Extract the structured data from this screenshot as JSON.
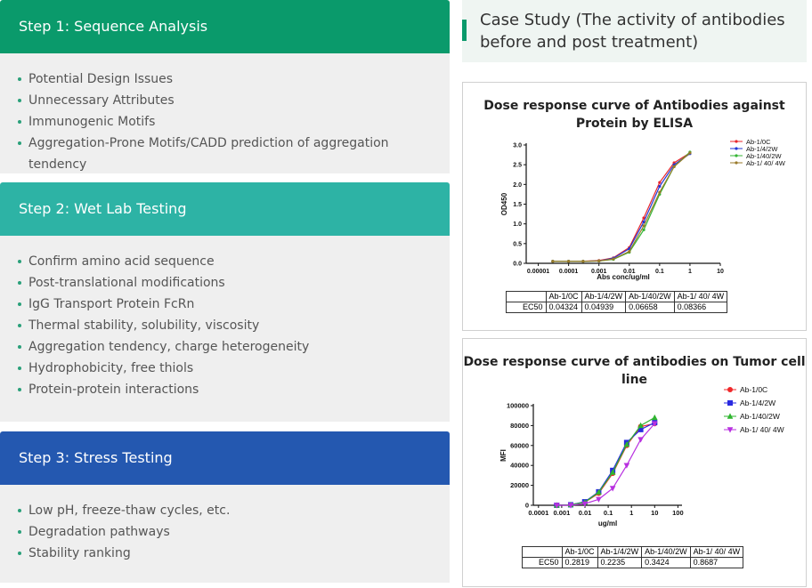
{
  "steps": [
    {
      "title": "Step 1: Sequence Analysis",
      "items": [
        "Potential Design Issues",
        "Unnecessary Attributes",
        "Immunogenic Motifs",
        "Aggregation-Prone Motifs/CADD prediction of aggregation tendency"
      ]
    },
    {
      "title": "Step 2: Wet Lab Testing",
      "items": [
        "Confirm amino acid sequence",
        "Post-translational modifications",
        "IgG Transport Protein FcRn",
        "Thermal stability, solubility, viscosity",
        "Aggregation tendency, charge heterogeneity",
        "Hydrophobicity, free thiols",
        "Protein-protein interactions"
      ]
    },
    {
      "title": "Step 3: Stress Testing",
      "items": [
        "Low pH, freeze-thaw cycles, etc.",
        "Degradation pathways",
        "Stability ranking"
      ]
    }
  ],
  "case_study": {
    "title": "Case Study (The activity of antibodies before and post treatment)"
  },
  "chart_data": [
    {
      "type": "line",
      "title": "Dose response curve of Antibodies against Protein by ELISA",
      "x_label": "Abs conc/ug/ml",
      "y_label": "OD450",
      "xscale": "log",
      "x": [
        3e-05,
        0.0001,
        0.0003,
        0.001,
        0.003,
        0.01,
        0.03,
        0.1,
        0.3,
        1
      ],
      "xlim": [
        4e-06,
        10
      ],
      "xticks": [
        1e-05,
        0.0001,
        0.001,
        0.01,
        0.1,
        1,
        10
      ],
      "ylim": [
        0,
        3
      ],
      "yticks": [
        {
          "value": 0,
          "label": "0.0"
        },
        {
          "value": 0.5,
          "label": "0.5"
        },
        {
          "value": 1,
          "label": "1.0"
        },
        {
          "value": 1.5,
          "label": "1.5"
        },
        {
          "value": 2,
          "label": "2.0"
        },
        {
          "value": 2.5,
          "label": "2.5"
        },
        {
          "value": 3,
          "label": "3.0"
        }
      ],
      "grid": false,
      "legend": "top-right",
      "series": [
        {
          "name": "Ab-1/0C",
          "color": "#e8262b",
          "marker": "circle",
          "values": [
            0.05,
            0.05,
            0.05,
            0.07,
            0.14,
            0.4,
            1.15,
            2.05,
            2.55,
            2.8
          ]
        },
        {
          "name": "Ab-1/4/2W",
          "color": "#2236d6",
          "marker": "circle",
          "values": [
            0.05,
            0.05,
            0.05,
            0.06,
            0.13,
            0.37,
            1.05,
            1.95,
            2.5,
            2.78
          ]
        },
        {
          "name": "Ab-1/40/2W",
          "color": "#34b534",
          "marker": "circle",
          "values": [
            0.05,
            0.05,
            0.05,
            0.06,
            0.1,
            0.28,
            0.85,
            1.75,
            2.45,
            2.82
          ]
        },
        {
          "name": "Ab-1/ 40/ 4W",
          "color": "#9a7a2a",
          "marker": "circle",
          "values": [
            0.05,
            0.05,
            0.05,
            0.06,
            0.11,
            0.3,
            0.95,
            1.8,
            2.45,
            2.8
          ]
        }
      ],
      "ec50_label": "EC50",
      "ec50": [
        0.04324,
        0.04939,
        0.06658,
        0.08366
      ]
    },
    {
      "type": "line",
      "title": "Dose response curve of antibodies on Tumor cell line",
      "x_label": "ug/ml",
      "y_label": "MFI",
      "xscale": "log",
      "x": [
        0.00061,
        0.00244,
        0.0098,
        0.039,
        0.156,
        0.625,
        2.5,
        10
      ],
      "xlim": [
        6e-05,
        150
      ],
      "xticks": [
        0.0001,
        0.001,
        0.01,
        0.1,
        1,
        10,
        100
      ],
      "ylim": [
        0,
        100000
      ],
      "yticks": [
        0,
        20000,
        40000,
        60000,
        80000,
        100000
      ],
      "grid": false,
      "legend": "top-right",
      "series": [
        {
          "name": "Ab-1/0C",
          "color": "#f0282a",
          "marker": "circle",
          "values": [
            0,
            500,
            3000,
            12000,
            32000,
            60000,
            79000,
            82000
          ]
        },
        {
          "name": "Ab-1/4/2W",
          "color": "#2a2ae0",
          "marker": "square",
          "values": [
            0,
            500,
            3500,
            13500,
            35000,
            63000,
            76000,
            83000
          ]
        },
        {
          "name": "Ab-1/40/2W",
          "color": "#2fb52f",
          "marker": "triangle",
          "values": [
            0,
            500,
            3000,
            13000,
            33000,
            61000,
            80000,
            88000
          ]
        },
        {
          "name": "Ab-1/ 40/ 4W",
          "color": "#b830e0",
          "marker": "triangle-down",
          "values": [
            0,
            0,
            1500,
            6000,
            17000,
            40000,
            66000,
            82000
          ]
        }
      ],
      "ec50_label": "EC50",
      "ec50": [
        0.2819,
        0.2235,
        0.3424,
        0.8687
      ]
    }
  ]
}
